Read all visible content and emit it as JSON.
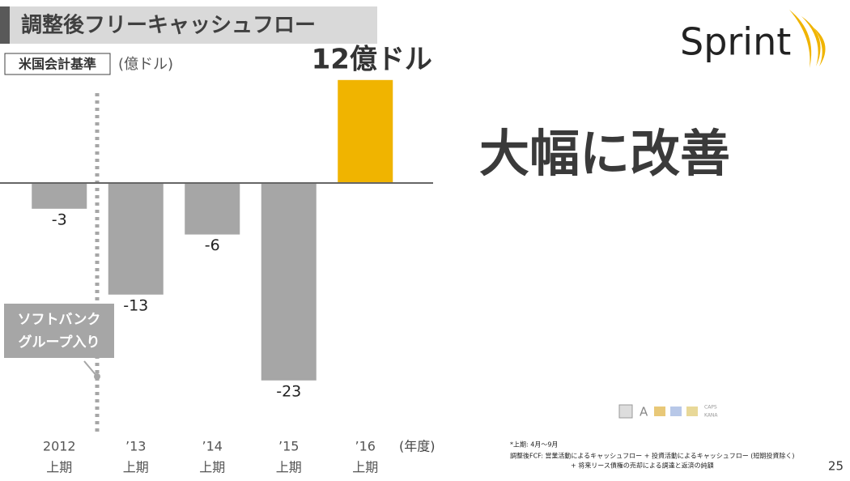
{
  "chart_data": {
    "type": "bar",
    "title": "調整後フリーキャッシュフロー",
    "standard_label": "米国会計基準",
    "unit_label": "(億ドル)",
    "headline": "大幅に改善",
    "categories": [
      "2012",
      "’13",
      "’14",
      "’15",
      "’16"
    ],
    "period_labels": [
      "上期",
      "上期",
      "上期",
      "上期",
      "上期"
    ],
    "x_unit": "(年度)",
    "values": [
      -3,
      -13,
      -6,
      -23,
      12
    ],
    "value_labels": [
      "-3",
      "-13",
      "-6",
      "-23",
      "12億ドル"
    ],
    "colors": [
      "#a6a6a6",
      "#a6a6a6",
      "#a6a6a6",
      "#a6a6a6",
      "#f0b400"
    ],
    "ylim": [
      -26,
      12.5
    ],
    "annotation": [
      "ソフトバンク",
      "グループ入り"
    ],
    "footnotes": [
      "*上期: 4月～9月",
      "調整後FCF:  営業活動によるキャッシュフロー + 投資活動によるキャッシュフロー (短期投資除く)",
      "+ 将来リース債権の売却による調達と返済の純額"
    ],
    "logo": "Sprint",
    "ime_labels": [
      "CAPS",
      "KANA"
    ],
    "page_number": "25"
  }
}
